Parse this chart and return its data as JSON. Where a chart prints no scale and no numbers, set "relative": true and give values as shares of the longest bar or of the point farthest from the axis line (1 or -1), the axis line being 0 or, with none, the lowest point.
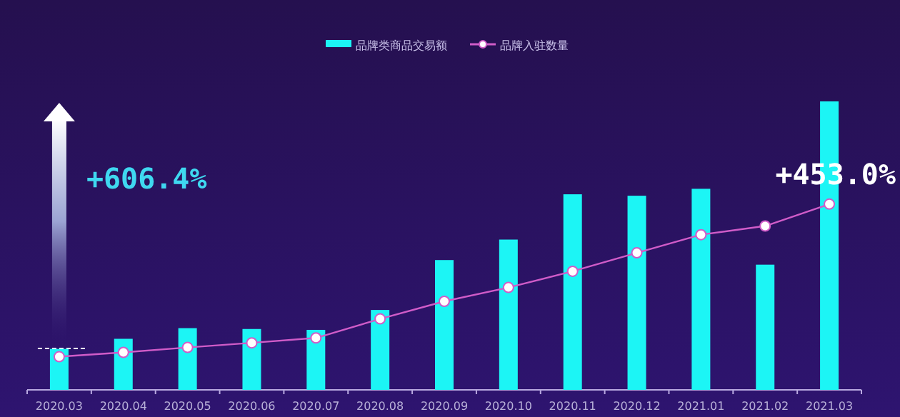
{
  "chart_data": {
    "type": "bar",
    "relative": true,
    "categories": [
      "2020.03",
      "2020.04",
      "2020.05",
      "2020.06",
      "2020.07",
      "2020.08",
      "2020.09",
      "2020.10",
      "2020.11",
      "2020.12",
      "2021.01",
      "2021.02",
      "2021.03"
    ],
    "series": [
      {
        "name": "品牌类商品交易额",
        "color": "#1cf5f5",
        "values": [
          0.142,
          0.177,
          0.214,
          0.211,
          0.208,
          0.277,
          0.45,
          0.521,
          0.678,
          0.673,
          0.697,
          0.434,
          1
        ]
      },
      {
        "name": "品牌入驻数量",
        "type": "line",
        "color": "#d05cc8",
        "marker": "circle",
        "values": [
          0.115,
          0.13,
          0.147,
          0.163,
          0.18,
          0.246,
          0.307,
          0.355,
          0.411,
          0.475,
          0.538,
          0.568,
          0.644
        ]
      }
    ],
    "annotations": [
      "+606.4%",
      {
        "text": "+453.0%",
        "x": "2021.03",
        "y": 0.644
      }
    ],
    "legend": "top"
  }
}
